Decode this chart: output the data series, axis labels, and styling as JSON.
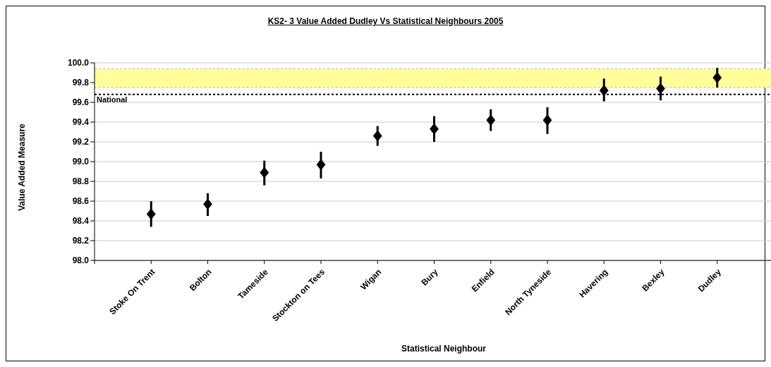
{
  "chart_data": {
    "type": "scatter",
    "title": "KS2- 3 Value Added Dudley Vs Statistical Neighbours 2005",
    "xlabel": "Statistical Neighbour",
    "ylabel": "Value Added Measure",
    "categories": [
      null,
      "Stoke On Trent",
      "Bolton",
      "Tameside",
      "Stockton on Tees",
      "Wigan",
      "Bury",
      "Enfield",
      "North Tyneside",
      "Havering",
      "Bexley",
      "Dudley",
      null
    ],
    "values": [
      null,
      98.47,
      98.57,
      98.89,
      98.97,
      99.26,
      99.33,
      99.42,
      99.42,
      99.72,
      99.74,
      99.85,
      null
    ],
    "errors": [
      null,
      [
        98.34,
        98.6
      ],
      [
        98.45,
        98.68
      ],
      [
        98.76,
        99.01
      ],
      [
        98.83,
        99.1
      ],
      [
        99.16,
        99.36
      ],
      [
        99.2,
        99.46
      ],
      [
        99.31,
        99.53
      ],
      [
        99.28,
        99.55
      ],
      [
        99.61,
        99.84
      ],
      [
        99.62,
        99.86
      ],
      [
        99.75,
        99.95
      ],
      null
    ],
    "color": "#000000",
    "marker": "diamond",
    "ylim": [
      98,
      100
    ],
    "yticks": [
      {
        "value": 98,
        "label": "98.0"
      },
      98.2,
      98.4,
      98.6,
      98.8,
      {
        "value": 99,
        "label": "99.0"
      },
      99.2,
      99.4,
      99.6,
      99.8,
      {
        "value": 100,
        "label": "100.0"
      }
    ],
    "grid": "y",
    "bands": [
      {
        "axis": "y",
        "from": 99.75,
        "to": 99.94,
        "color": "#ffff99"
      }
    ],
    "ref_lines": [
      {
        "axis": "y",
        "value": 99.68,
        "label": "National",
        "line_style": "dotted",
        "color": "#000000"
      }
    ]
  }
}
